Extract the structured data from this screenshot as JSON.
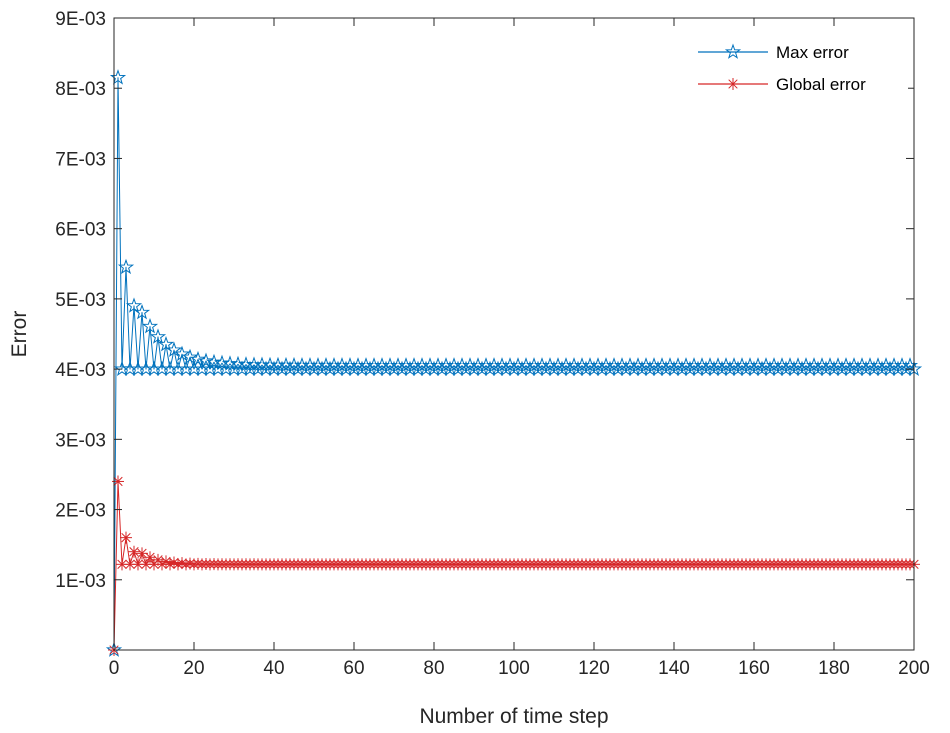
{
  "chart_data": {
    "type": "line",
    "title": "",
    "xlabel": "Number of time step",
    "ylabel": "Error",
    "xlim": [
      0,
      200
    ],
    "ylim": [
      0,
      0.009
    ],
    "xticks": [
      0,
      20,
      40,
      60,
      80,
      100,
      120,
      140,
      160,
      180,
      200
    ],
    "xtick_labels": [
      "0",
      "20",
      "40",
      "60",
      "80",
      "100",
      "120",
      "140",
      "160",
      "180",
      "200"
    ],
    "yticks": [
      0.001,
      0.002,
      0.003,
      0.004,
      0.005,
      0.006,
      0.007,
      0.008,
      0.009
    ],
    "ytick_labels": [
      "1E-03",
      "2E-03",
      "3E-03",
      "4E-03",
      "5E-03",
      "6E-03",
      "7E-03",
      "8E-03",
      "9E-03"
    ],
    "grid": false,
    "legend_position": "top-right",
    "series": [
      {
        "name": "Max error",
        "color": "#0072BD",
        "marker": "pentagram",
        "x_range": [
          0,
          200
        ],
        "first_values": [
          0.0,
          0.00815,
          0.004,
          0.00545,
          0.004,
          0.0049
        ],
        "steady_low": 0.004,
        "steady_high": 0.00405,
        "peak_decay": {
          "start_x": 3,
          "start_value": 0.00545,
          "tau_steps": 6.5
        }
      },
      {
        "name": "Global error",
        "color": "#D62728",
        "marker": "asterisk",
        "x_range": [
          0,
          200
        ],
        "first_values": [
          0.0,
          0.0024,
          0.00122,
          0.0016,
          0.00122,
          0.0014
        ],
        "steady_low": 0.00122,
        "steady_high": 0.00122,
        "peak_decay": {
          "start_x": 3,
          "start_value": 0.0016,
          "tau_steps": 4.5
        }
      }
    ]
  }
}
